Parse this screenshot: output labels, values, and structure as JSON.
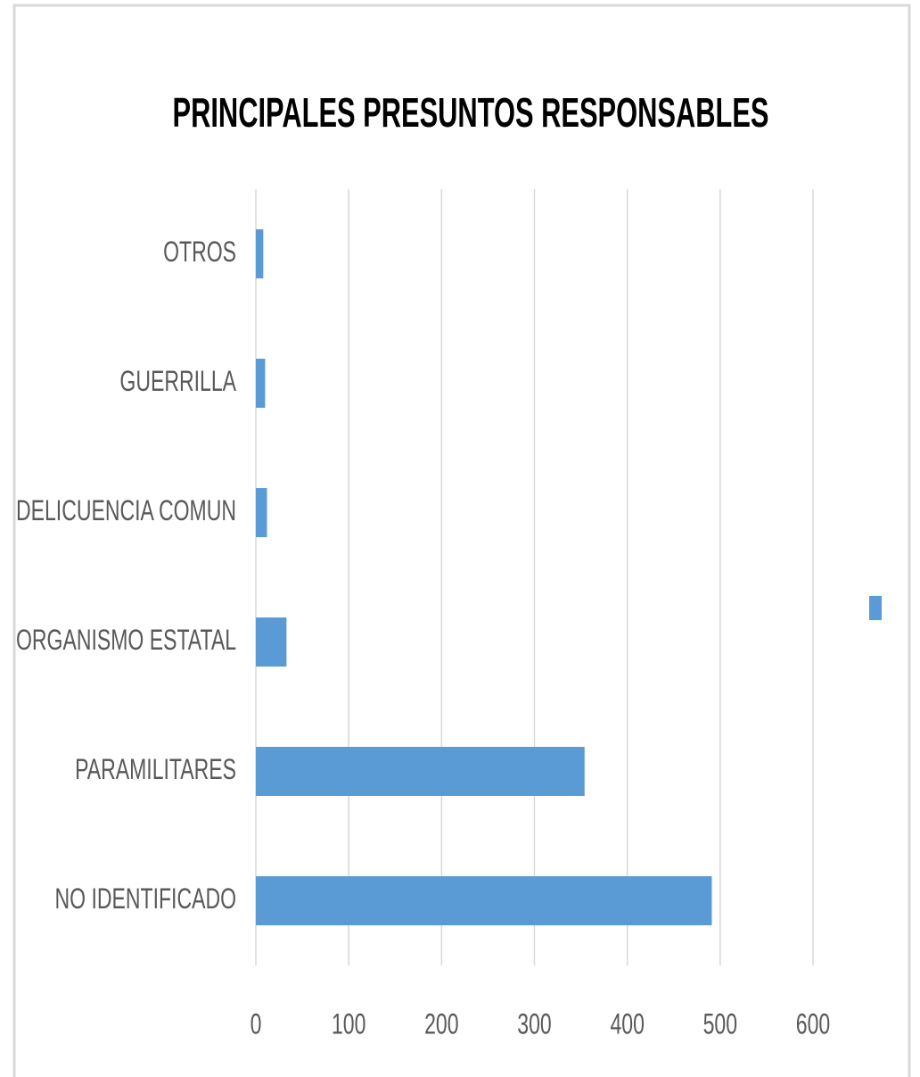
{
  "chart_data": {
    "type": "bar",
    "orientation": "horizontal",
    "title": "PRINCIPALES PRESUNTOS RESPONSABLES",
    "categories": [
      "OTROS",
      "GUERRILLA",
      "DELICUENCIA COMUN",
      "ORGANISMO ESTATAL",
      "PARAMILITARES",
      "NO IDENTIFICADO"
    ],
    "values": [
      8,
      10,
      12,
      33,
      354,
      491
    ],
    "color": "#5b9bd5",
    "xlim": [
      0,
      600
    ],
    "xticks": [
      0,
      100,
      200,
      300,
      400,
      500,
      600
    ],
    "grid": true
  }
}
